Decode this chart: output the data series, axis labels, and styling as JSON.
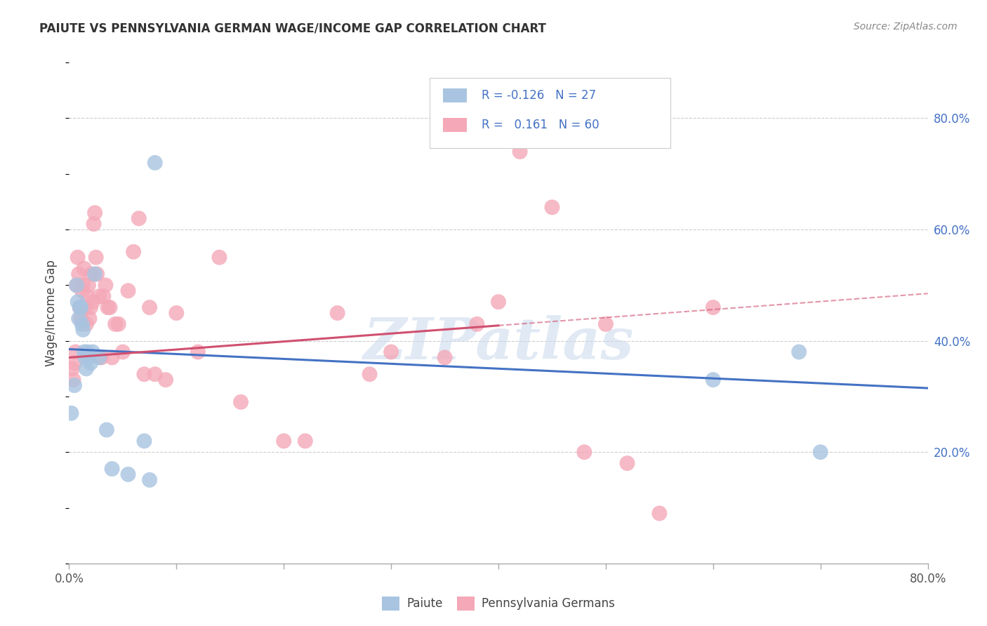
{
  "title": "PAIUTE VS PENNSYLVANIA GERMAN WAGE/INCOME GAP CORRELATION CHART",
  "source": "Source: ZipAtlas.com",
  "ylabel": "Wage/Income Gap",
  "right_yticks": [
    "80.0%",
    "60.0%",
    "40.0%",
    "20.0%"
  ],
  "right_ytick_vals": [
    0.8,
    0.6,
    0.4,
    0.2
  ],
  "legend_label1": "Paiute",
  "legend_label2": "Pennsylvania Germans",
  "color_paiute": "#a8c4e0",
  "color_pa_german": "#f4a8b8",
  "color_line_paiute": "#4472C4",
  "color_line_pa": "#D05070",
  "watermark": "ZIPatlas",
  "paiute_x": [
    0.002,
    0.005,
    0.007,
    0.008,
    0.009,
    0.01,
    0.011,
    0.012,
    0.013,
    0.014,
    0.015,
    0.016,
    0.017,
    0.018,
    0.02,
    0.022,
    0.024,
    0.028,
    0.035,
    0.04,
    0.055,
    0.07,
    0.075,
    0.08,
    0.6,
    0.68,
    0.7
  ],
  "paiute_y": [
    0.27,
    0.32,
    0.5,
    0.47,
    0.44,
    0.46,
    0.46,
    0.43,
    0.42,
    0.38,
    0.37,
    0.35,
    0.38,
    0.37,
    0.36,
    0.38,
    0.52,
    0.37,
    0.24,
    0.17,
    0.16,
    0.22,
    0.15,
    0.72,
    0.33,
    0.38,
    0.2
  ],
  "pa_x": [
    0.003,
    0.004,
    0.005,
    0.006,
    0.007,
    0.008,
    0.009,
    0.01,
    0.011,
    0.012,
    0.013,
    0.014,
    0.015,
    0.016,
    0.017,
    0.018,
    0.019,
    0.02,
    0.021,
    0.022,
    0.023,
    0.024,
    0.025,
    0.026,
    0.028,
    0.03,
    0.032,
    0.034,
    0.036,
    0.038,
    0.04,
    0.043,
    0.046,
    0.05,
    0.055,
    0.06,
    0.065,
    0.07,
    0.075,
    0.08,
    0.09,
    0.1,
    0.12,
    0.14,
    0.16,
    0.2,
    0.22,
    0.25,
    0.28,
    0.3,
    0.35,
    0.38,
    0.4,
    0.42,
    0.45,
    0.48,
    0.5,
    0.52,
    0.55,
    0.6
  ],
  "pa_y": [
    0.35,
    0.33,
    0.36,
    0.38,
    0.5,
    0.55,
    0.52,
    0.46,
    0.44,
    0.49,
    0.5,
    0.53,
    0.46,
    0.43,
    0.48,
    0.5,
    0.44,
    0.46,
    0.52,
    0.47,
    0.61,
    0.63,
    0.55,
    0.52,
    0.48,
    0.37,
    0.48,
    0.5,
    0.46,
    0.46,
    0.37,
    0.43,
    0.43,
    0.38,
    0.49,
    0.56,
    0.62,
    0.34,
    0.46,
    0.34,
    0.33,
    0.45,
    0.38,
    0.55,
    0.29,
    0.22,
    0.22,
    0.45,
    0.34,
    0.38,
    0.37,
    0.43,
    0.47,
    0.74,
    0.64,
    0.2,
    0.43,
    0.18,
    0.09,
    0.46
  ],
  "xlim": [
    0.0,
    0.8
  ],
  "ylim": [
    0.0,
    0.9
  ],
  "blue_line_y0": 0.385,
  "blue_line_y1": 0.315,
  "pink_line_y0": 0.37,
  "pink_line_y1": 0.485
}
